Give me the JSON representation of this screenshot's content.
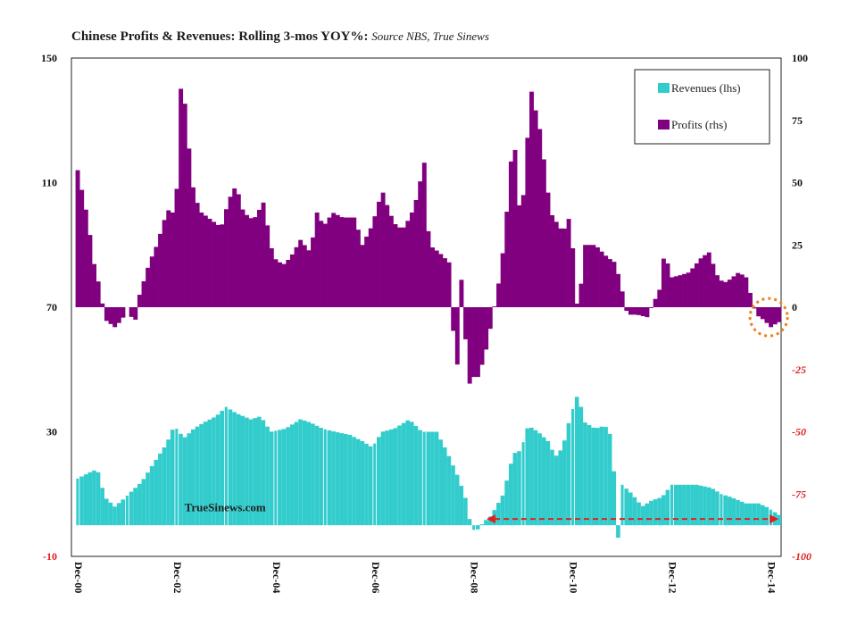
{
  "title": {
    "main": "Chinese Profits & Revenues: Rolling 3-mos YOY%:",
    "source": "Source NBS, True Sinews"
  },
  "watermark": "TrueSinews.com",
  "colors": {
    "revenues": "#33CCCC",
    "profits": "#800080",
    "negative_axis_text": "#E02020",
    "highlight_circle": "#F08020",
    "arrow": "#E02020"
  },
  "chart_data": {
    "type": "bar",
    "title": "Chinese Profits & Revenues: Rolling 3-mos YOY%",
    "x_tick_labels": [
      "Dec-00",
      "Dec-02",
      "Dec-04",
      "Dec-06",
      "Dec-08",
      "Dec-10",
      "Dec-12",
      "Dec-14"
    ],
    "x_range": [
      2000.917,
      2015.25
    ],
    "left_axis": {
      "ticks": [
        "150",
        "110",
        "70",
        "30",
        "-10"
      ],
      "ylim": [
        -10,
        150
      ]
    },
    "right_axis": {
      "ticks": [
        "100",
        "75",
        "50",
        "25",
        "0",
        "-25",
        "-50",
        "-75",
        "-100"
      ],
      "ylim": [
        -100,
        100
      ]
    },
    "legend": {
      "position": "top-right",
      "entries": [
        "Revenues (lhs)",
        "Profits (rhs)"
      ]
    },
    "series": [
      {
        "name": "Revenues (lhs)",
        "axis": "left",
        "anchors": [
          [
            2001.0,
            15
          ],
          [
            2001.25,
            17
          ],
          [
            2001.4,
            18
          ],
          [
            2001.55,
            9
          ],
          [
            2001.75,
            6
          ],
          [
            2001.9,
            8
          ],
          [
            2002.1,
            11
          ],
          [
            2002.3,
            14
          ],
          [
            2002.5,
            19
          ],
          [
            2002.75,
            25
          ],
          [
            2002.85,
            28
          ],
          [
            2002.95,
            32
          ],
          [
            2003.15,
            28
          ],
          [
            2003.35,
            31
          ],
          [
            2003.55,
            33
          ],
          [
            2003.8,
            35
          ],
          [
            2004.0,
            38
          ],
          [
            2004.2,
            36
          ],
          [
            2004.5,
            34
          ],
          [
            2004.7,
            35
          ],
          [
            2004.9,
            30
          ],
          [
            2005.2,
            31
          ],
          [
            2005.5,
            34
          ],
          [
            2005.7,
            33
          ],
          [
            2005.95,
            31
          ],
          [
            2006.2,
            30
          ],
          [
            2006.5,
            29
          ],
          [
            2006.75,
            27
          ],
          [
            2006.95,
            25
          ],
          [
            2007.15,
            30
          ],
          [
            2007.4,
            31
          ],
          [
            2007.7,
            34
          ],
          [
            2007.95,
            30
          ],
          [
            2008.25,
            30
          ],
          [
            2008.45,
            24
          ],
          [
            2008.7,
            15
          ],
          [
            2008.85,
            8
          ],
          [
            2008.95,
            -1
          ],
          [
            2009.05,
            -2
          ],
          [
            2009.2,
            1
          ],
          [
            2009.35,
            3
          ],
          [
            2009.6,
            10
          ],
          [
            2009.8,
            23
          ],
          [
            2009.95,
            24
          ],
          [
            2010.1,
            32
          ],
          [
            2010.3,
            30
          ],
          [
            2010.5,
            27
          ],
          [
            2010.65,
            22
          ],
          [
            2010.8,
            25
          ],
          [
            2010.95,
            35
          ],
          [
            2011.1,
            42
          ],
          [
            2011.25,
            33
          ],
          [
            2011.45,
            31
          ],
          [
            2011.65,
            32
          ],
          [
            2011.8,
            28
          ],
          [
            2011.9,
            -4
          ],
          [
            2011.95,
            -4
          ],
          [
            2012.0,
            13
          ],
          [
            2012.2,
            10
          ],
          [
            2012.4,
            6
          ],
          [
            2012.6,
            8
          ],
          [
            2012.8,
            9
          ],
          [
            2013.0,
            13
          ],
          [
            2013.2,
            13
          ],
          [
            2013.5,
            13
          ],
          [
            2013.8,
            12
          ],
          [
            2014.0,
            10
          ],
          [
            2014.2,
            9
          ],
          [
            2014.5,
            7
          ],
          [
            2014.75,
            7
          ],
          [
            2014.9,
            6
          ],
          [
            2015.1,
            4
          ],
          [
            2015.2,
            3
          ]
        ]
      },
      {
        "name": "Profits (rhs)",
        "axis": "right",
        "anchors": [
          [
            2001.0,
            55
          ],
          [
            2001.2,
            36
          ],
          [
            2001.35,
            15
          ],
          [
            2001.45,
            8
          ],
          [
            2001.55,
            -5
          ],
          [
            2001.75,
            -8
          ],
          [
            2001.9,
            -5
          ],
          [
            2002.0,
            0
          ],
          [
            2002.15,
            -7
          ],
          [
            2002.25,
            5
          ],
          [
            2002.45,
            18
          ],
          [
            2002.6,
            25
          ],
          [
            2002.75,
            35
          ],
          [
            2002.9,
            42
          ],
          [
            2002.95,
            30
          ],
          [
            2003.05,
            65
          ],
          [
            2003.1,
            99
          ],
          [
            2003.2,
            73
          ],
          [
            2003.35,
            45
          ],
          [
            2003.5,
            38
          ],
          [
            2003.7,
            35
          ],
          [
            2003.9,
            32
          ],
          [
            2004.05,
            43
          ],
          [
            2004.2,
            49
          ],
          [
            2004.35,
            38
          ],
          [
            2004.55,
            35
          ],
          [
            2004.75,
            42
          ],
          [
            2004.95,
            20
          ],
          [
            2005.15,
            17
          ],
          [
            2005.3,
            20
          ],
          [
            2005.5,
            27
          ],
          [
            2005.7,
            22
          ],
          [
            2005.85,
            40
          ],
          [
            2005.95,
            32
          ],
          [
            2006.15,
            38
          ],
          [
            2006.35,
            36
          ],
          [
            2006.6,
            36
          ],
          [
            2006.75,
            25
          ],
          [
            2006.95,
            33
          ],
          [
            2007.15,
            47
          ],
          [
            2007.3,
            38
          ],
          [
            2007.45,
            32
          ],
          [
            2007.6,
            32
          ],
          [
            2007.8,
            40
          ],
          [
            2008.0,
            58
          ],
          [
            2008.1,
            25
          ],
          [
            2008.3,
            22
          ],
          [
            2008.5,
            18
          ],
          [
            2008.6,
            -15
          ],
          [
            2008.7,
            -27
          ],
          [
            2008.75,
            11
          ],
          [
            2008.9,
            -32
          ],
          [
            2008.95,
            -28
          ],
          [
            2009.1,
            -28
          ],
          [
            2009.25,
            -17
          ],
          [
            2009.35,
            -7
          ],
          [
            2009.55,
            15
          ],
          [
            2009.7,
            45
          ],
          [
            2009.8,
            72
          ],
          [
            2009.95,
            32
          ],
          [
            2010.05,
            58
          ],
          [
            2010.15,
            88
          ],
          [
            2010.35,
            70
          ],
          [
            2010.55,
            38
          ],
          [
            2010.8,
            30
          ],
          [
            2010.95,
            37
          ],
          [
            2011.1,
            -3
          ],
          [
            2011.25,
            25
          ],
          [
            2011.45,
            25
          ],
          [
            2011.7,
            20
          ],
          [
            2011.85,
            18
          ],
          [
            2011.95,
            11
          ],
          [
            2012.1,
            -3
          ],
          [
            2012.3,
            -3
          ],
          [
            2012.5,
            -4
          ],
          [
            2012.75,
            7
          ],
          [
            2012.85,
            22
          ],
          [
            2013.0,
            12
          ],
          [
            2013.2,
            13
          ],
          [
            2013.35,
            14
          ],
          [
            2013.6,
            20
          ],
          [
            2013.75,
            22
          ],
          [
            2013.95,
            11
          ],
          [
            2014.1,
            10
          ],
          [
            2014.35,
            14
          ],
          [
            2014.5,
            12
          ],
          [
            2014.7,
            -3
          ],
          [
            2014.85,
            -5
          ],
          [
            2015.0,
            -8
          ],
          [
            2015.15,
            -6
          ]
        ]
      }
    ],
    "annotations": {
      "text": "TrueSinews.com",
      "arrow": {
        "x_from": 2009.3,
        "x_to": 2015.2,
        "y_rhs": -85
      },
      "circle": {
        "x": 2015.0,
        "y_rhs": -4
      }
    }
  }
}
